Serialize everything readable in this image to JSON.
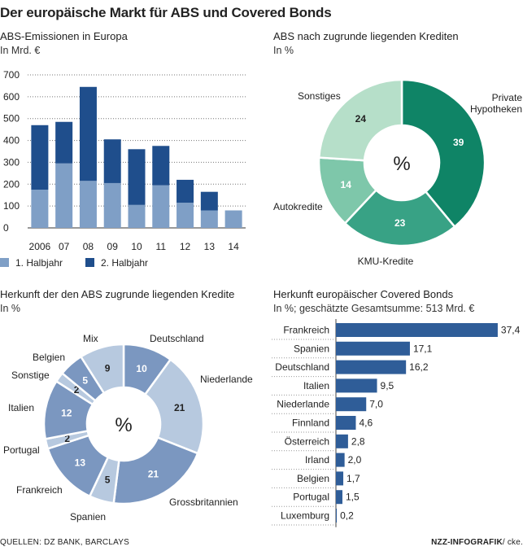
{
  "title": "Der europäische Markt für ABS und Covered Bonds",
  "footer": {
    "source": "QUELLEN: DZ BANK, BARCLAYS",
    "credit": "NZZ-INFOGRAFIK",
    "author": "/ cke."
  },
  "chart_data": [
    {
      "type": "bar",
      "stacked": true,
      "title": "ABS-Emissionen in Europa",
      "ylabel": "In Mrd. €",
      "categories": [
        "2006",
        "07",
        "08",
        "09",
        "10",
        "11",
        "12",
        "13",
        "14"
      ],
      "series": [
        {
          "name": "1. Halbjahr",
          "color": "#7f9fc6",
          "values": [
            175,
            295,
            215,
            205,
            105,
            195,
            115,
            80,
            80
          ]
        },
        {
          "name": "2. Halbjahr",
          "color": "#1f4e8c",
          "values": [
            295,
            190,
            430,
            200,
            255,
            180,
            105,
            85,
            0
          ]
        }
      ],
      "yticks": [
        0,
        100,
        200,
        300,
        400,
        500,
        600,
        700
      ],
      "ylim": [
        0,
        700
      ]
    },
    {
      "type": "pie",
      "donut": true,
      "title": "ABS nach zugrunde liegenden Krediten",
      "unit": "In %",
      "center_label": "%",
      "slices": [
        {
          "label": "Private Hypotheken",
          "value": 39,
          "color": "#0f8466"
        },
        {
          "label": "KMU-Kredite",
          "value": 23,
          "color": "#38a285"
        },
        {
          "label": "Autokredite",
          "value": 14,
          "color": "#7ec7aa"
        },
        {
          "label": "Sonstiges",
          "value": 24,
          "color": "#b6dfc9"
        }
      ]
    },
    {
      "type": "pie",
      "donut": true,
      "title": "Herkunft der den ABS zugrunde liegenden Kredite",
      "unit": "In %",
      "center_label": "%",
      "slices": [
        {
          "label": "Deutschland",
          "value": 10,
          "color": "#7b97c0"
        },
        {
          "label": "Niederlande",
          "value": 21,
          "color": "#b7c9df"
        },
        {
          "label": "Grossbritannien",
          "value": 21,
          "color": "#7b97c0"
        },
        {
          "label": "Spanien",
          "value": 5,
          "color": "#b7c9df"
        },
        {
          "label": "Frankreich",
          "value": 13,
          "color": "#7b97c0"
        },
        {
          "label": "Portugal",
          "value": 2,
          "color": "#b7c9df"
        },
        {
          "label": "Italien",
          "value": 12,
          "color": "#7b97c0"
        },
        {
          "label": "Sonstige",
          "value": 2,
          "color": "#b7c9df"
        },
        {
          "label": "Belgien",
          "value": 5,
          "color": "#7b97c0"
        },
        {
          "label": "Mix",
          "value": 9,
          "color": "#b7c9df"
        }
      ]
    },
    {
      "type": "bar",
      "orientation": "horizontal",
      "title": "Herkunft europäischer Covered Bonds",
      "unit": "In %; geschätzte Gesamtsumme: 513 Mrd. €",
      "categories": [
        "Frankreich",
        "Spanien",
        "Deutschland",
        "Italien",
        "Niederlande",
        "Finnland",
        "Österreich",
        "Irland",
        "Belgien",
        "Portugal",
        "Luxemburg"
      ],
      "values": [
        37.4,
        17.1,
        16.2,
        9.5,
        7.0,
        4.6,
        2.8,
        2.0,
        1.7,
        1.5,
        0.2
      ],
      "value_labels": [
        "37,4",
        "17,1",
        "16,2",
        "9,5",
        "7,0",
        "4,6",
        "2,8",
        "2,0",
        "1,7",
        "1,5",
        "0,2"
      ],
      "color": "#2f5d98",
      "xlim": [
        0,
        40
      ]
    }
  ]
}
